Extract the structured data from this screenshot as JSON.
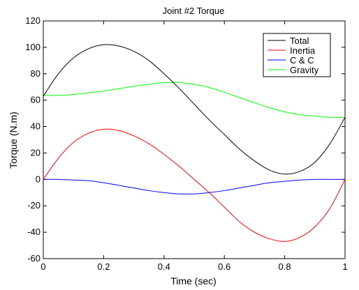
{
  "chart_data": {
    "type": "line",
    "title": "Joint #2 Torque",
    "xlabel": "Time (sec)",
    "ylabel": "Torque (N.m)",
    "xlim": [
      0,
      1
    ],
    "ylim": [
      -60,
      120
    ],
    "xticks": [
      0,
      0.2,
      0.4,
      0.6,
      0.8,
      1
    ],
    "xtick_labels": [
      "0",
      "0.2",
      "0.4",
      "0.6",
      "0.8",
      "1"
    ],
    "yticks": [
      -60,
      -40,
      -20,
      0,
      20,
      40,
      60,
      80,
      100,
      120
    ],
    "ytick_labels": [
      "-60",
      "-40",
      "-20",
      "0",
      "20",
      "40",
      "60",
      "80",
      "100",
      "120"
    ],
    "grid": false,
    "legend_position": "top-right",
    "x": [
      0,
      0.05,
      0.1,
      0.15,
      0.2,
      0.25,
      0.3,
      0.35,
      0.4,
      0.45,
      0.5,
      0.55,
      0.6,
      0.65,
      0.7,
      0.75,
      0.8,
      0.85,
      0.9,
      0.95,
      1.0
    ],
    "series": [
      {
        "name": "Total",
        "color": "#000000",
        "values": [
          63,
          80,
          92,
          99,
          102,
          101,
          97,
          90,
          80,
          69,
          57,
          45,
          34,
          23,
          14,
          7,
          4,
          6,
          13,
          27,
          47
        ]
      },
      {
        "name": "Inertia",
        "color": "#ff0000",
        "values": [
          0,
          16,
          28,
          35,
          38,
          37,
          33,
          27,
          19,
          10,
          0,
          -10,
          -21,
          -32,
          -40,
          -45,
          -47,
          -44,
          -36,
          -22,
          0
        ]
      },
      {
        "name": "C & C",
        "color": "#0000ff",
        "values": [
          0,
          0,
          -0.5,
          -1,
          -2.5,
          -4.5,
          -6.5,
          -8.5,
          -10,
          -11,
          -11,
          -10,
          -8.5,
          -6.5,
          -4.5,
          -2.5,
          -1.5,
          -0.5,
          0,
          0,
          0
        ]
      },
      {
        "name": "Gravity",
        "color": "#00ff00",
        "values": [
          63.5,
          63.6,
          64.3,
          65.5,
          67,
          68.6,
          70.5,
          72,
          73.2,
          73.3,
          72,
          69.5,
          66,
          62,
          58,
          54.3,
          51.2,
          49,
          48,
          47,
          47
        ]
      }
    ]
  }
}
